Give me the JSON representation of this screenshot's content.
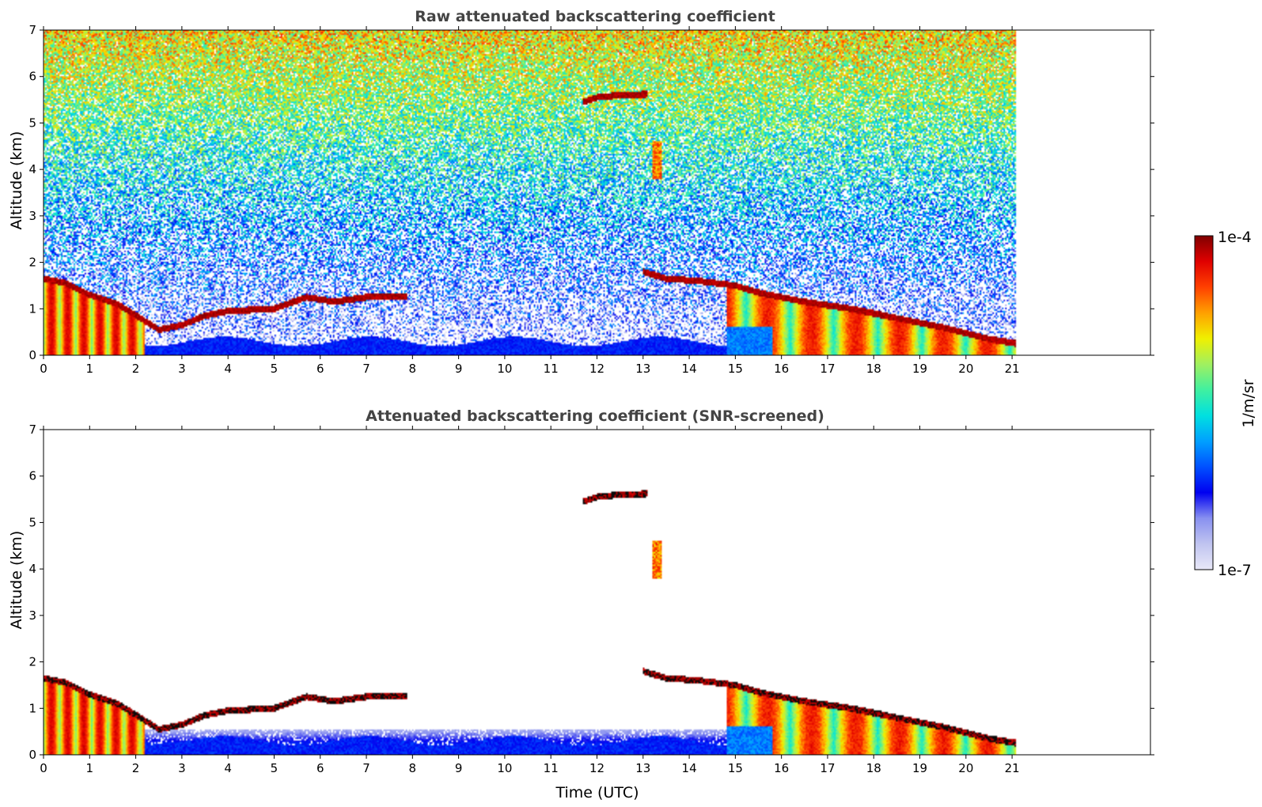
{
  "chart_data": [
    {
      "type": "heatmap",
      "title": "Raw attenuated backscattering coefficient",
      "xlabel": "",
      "ylabel": "Altitude (km)",
      "xlim": [
        0,
        24
      ],
      "ylim": [
        0,
        7
      ],
      "x_ticks": [
        0,
        1,
        2,
        3,
        4,
        5,
        6,
        7,
        8,
        9,
        10,
        11,
        12,
        13,
        14,
        15,
        16,
        17,
        18,
        19,
        20,
        21
      ],
      "y_ticks": [
        0,
        1,
        2,
        3,
        4,
        5,
        6,
        7
      ],
      "data_end_time": 21.1,
      "noise_field": true,
      "features": [
        {
          "name": "boundary layer aerosol",
          "t0": 0,
          "t1": 21.1,
          "top_km": 0.3,
          "level": 0.18
        },
        {
          "name": "low cloud layer early",
          "points": [
            [
              0,
              1.65
            ],
            [
              0.5,
              1.55
            ],
            [
              1.0,
              1.3
            ],
            [
              1.6,
              1.1
            ],
            [
              2.1,
              0.8
            ],
            [
              2.5,
              0.55
            ],
            [
              3.0,
              0.65
            ],
            [
              3.5,
              0.85
            ],
            [
              4.0,
              0.95
            ],
            [
              5.0,
              1.0
            ],
            [
              5.7,
              1.25
            ],
            [
              6.3,
              1.15
            ],
            [
              7.0,
              1.25
            ],
            [
              7.9,
              1.25
            ]
          ],
          "level": 1.0
        },
        {
          "name": "high cloud",
          "points": [
            [
              11.7,
              5.45
            ],
            [
              12.0,
              5.55
            ],
            [
              12.5,
              5.6
            ],
            [
              13.1,
              5.62
            ]
          ],
          "level": 1.0
        },
        {
          "name": "virga",
          "t": 13.3,
          "bottom_km": 3.8,
          "top_km": 4.6,
          "level": 0.8
        },
        {
          "name": "cloud layer afternoon",
          "points": [
            [
              13.0,
              1.8
            ],
            [
              13.5,
              1.65
            ],
            [
              14.2,
              1.6
            ],
            [
              15.0,
              1.5
            ],
            [
              15.5,
              1.35
            ],
            [
              16.5,
              1.15
            ],
            [
              17.5,
              1.0
            ],
            [
              18.5,
              0.8
            ],
            [
              19.5,
              0.6
            ],
            [
              20.5,
              0.35
            ],
            [
              21.1,
              0.25
            ]
          ],
          "level": 1.0
        },
        {
          "name": "convective boundary layer",
          "t0": 14.8,
          "t1": 21.1,
          "top_km": 1.2,
          "level": 0.6
        }
      ]
    },
    {
      "type": "heatmap",
      "title": "Attenuated backscattering coefficient (SNR-screened)",
      "xlabel": "Time (UTC)",
      "ylabel": "Altitude (km)",
      "xlim": [
        0,
        24
      ],
      "ylim": [
        0,
        7
      ],
      "x_ticks": [
        0,
        1,
        2,
        3,
        4,
        5,
        6,
        7,
        8,
        9,
        10,
        11,
        12,
        13,
        14,
        15,
        16,
        17,
        18,
        19,
        20,
        21
      ],
      "y_ticks": [
        0,
        1,
        2,
        3,
        4,
        5,
        6,
        7
      ],
      "data_end_time": 21.1,
      "noise_field": false
    }
  ],
  "colorbar": {
    "label": "1/m/sr",
    "max_label": "1e-4",
    "min_label": "1e-7",
    "colors": [
      "#e8e8f8",
      "#c0c4f0",
      "#8890f0",
      "#0000f0",
      "#0050ff",
      "#00a0ff",
      "#00e0e0",
      "#40f0a0",
      "#a0f060",
      "#f0f000",
      "#ffa000",
      "#ff4000",
      "#e00000",
      "#800000"
    ]
  }
}
